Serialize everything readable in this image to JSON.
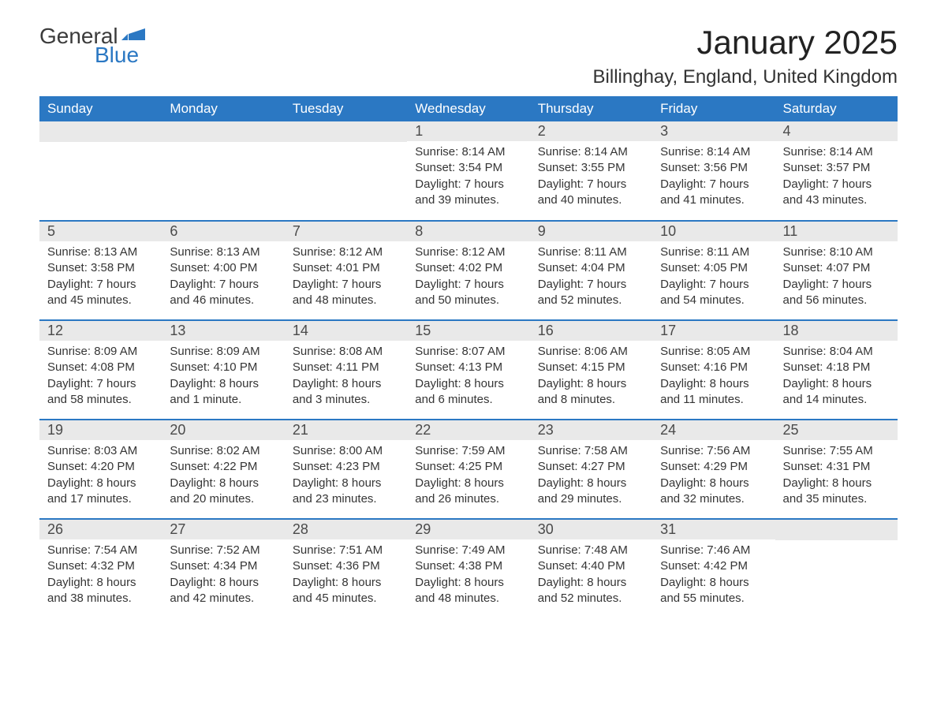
{
  "brand": {
    "word1": "General",
    "word2": "Blue",
    "flag_color": "#2b78c3"
  },
  "title": "January 2025",
  "location": "Billinghay, England, United Kingdom",
  "colors": {
    "header_bg": "#2b78c3",
    "header_fg": "#ffffff",
    "daynum_bg": "#e9e9e9",
    "text": "#323232",
    "row_divider": "#2b78c3"
  },
  "day_headers": [
    "Sunday",
    "Monday",
    "Tuesday",
    "Wednesday",
    "Thursday",
    "Friday",
    "Saturday"
  ],
  "weeks": [
    [
      null,
      null,
      null,
      {
        "n": "1",
        "sunrise": "8:14 AM",
        "sunset": "3:54 PM",
        "daylight": "7 hours and 39 minutes."
      },
      {
        "n": "2",
        "sunrise": "8:14 AM",
        "sunset": "3:55 PM",
        "daylight": "7 hours and 40 minutes."
      },
      {
        "n": "3",
        "sunrise": "8:14 AM",
        "sunset": "3:56 PM",
        "daylight": "7 hours and 41 minutes."
      },
      {
        "n": "4",
        "sunrise": "8:14 AM",
        "sunset": "3:57 PM",
        "daylight": "7 hours and 43 minutes."
      }
    ],
    [
      {
        "n": "5",
        "sunrise": "8:13 AM",
        "sunset": "3:58 PM",
        "daylight": "7 hours and 45 minutes."
      },
      {
        "n": "6",
        "sunrise": "8:13 AM",
        "sunset": "4:00 PM",
        "daylight": "7 hours and 46 minutes."
      },
      {
        "n": "7",
        "sunrise": "8:12 AM",
        "sunset": "4:01 PM",
        "daylight": "7 hours and 48 minutes."
      },
      {
        "n": "8",
        "sunrise": "8:12 AM",
        "sunset": "4:02 PM",
        "daylight": "7 hours and 50 minutes."
      },
      {
        "n": "9",
        "sunrise": "8:11 AM",
        "sunset": "4:04 PM",
        "daylight": "7 hours and 52 minutes."
      },
      {
        "n": "10",
        "sunrise": "8:11 AM",
        "sunset": "4:05 PM",
        "daylight": "7 hours and 54 minutes."
      },
      {
        "n": "11",
        "sunrise": "8:10 AM",
        "sunset": "4:07 PM",
        "daylight": "7 hours and 56 minutes."
      }
    ],
    [
      {
        "n": "12",
        "sunrise": "8:09 AM",
        "sunset": "4:08 PM",
        "daylight": "7 hours and 58 minutes."
      },
      {
        "n": "13",
        "sunrise": "8:09 AM",
        "sunset": "4:10 PM",
        "daylight": "8 hours and 1 minute."
      },
      {
        "n": "14",
        "sunrise": "8:08 AM",
        "sunset": "4:11 PM",
        "daylight": "8 hours and 3 minutes."
      },
      {
        "n": "15",
        "sunrise": "8:07 AM",
        "sunset": "4:13 PM",
        "daylight": "8 hours and 6 minutes."
      },
      {
        "n": "16",
        "sunrise": "8:06 AM",
        "sunset": "4:15 PM",
        "daylight": "8 hours and 8 minutes."
      },
      {
        "n": "17",
        "sunrise": "8:05 AM",
        "sunset": "4:16 PM",
        "daylight": "8 hours and 11 minutes."
      },
      {
        "n": "18",
        "sunrise": "8:04 AM",
        "sunset": "4:18 PM",
        "daylight": "8 hours and 14 minutes."
      }
    ],
    [
      {
        "n": "19",
        "sunrise": "8:03 AM",
        "sunset": "4:20 PM",
        "daylight": "8 hours and 17 minutes."
      },
      {
        "n": "20",
        "sunrise": "8:02 AM",
        "sunset": "4:22 PM",
        "daylight": "8 hours and 20 minutes."
      },
      {
        "n": "21",
        "sunrise": "8:00 AM",
        "sunset": "4:23 PM",
        "daylight": "8 hours and 23 minutes."
      },
      {
        "n": "22",
        "sunrise": "7:59 AM",
        "sunset": "4:25 PM",
        "daylight": "8 hours and 26 minutes."
      },
      {
        "n": "23",
        "sunrise": "7:58 AM",
        "sunset": "4:27 PM",
        "daylight": "8 hours and 29 minutes."
      },
      {
        "n": "24",
        "sunrise": "7:56 AM",
        "sunset": "4:29 PM",
        "daylight": "8 hours and 32 minutes."
      },
      {
        "n": "25",
        "sunrise": "7:55 AM",
        "sunset": "4:31 PM",
        "daylight": "8 hours and 35 minutes."
      }
    ],
    [
      {
        "n": "26",
        "sunrise": "7:54 AM",
        "sunset": "4:32 PM",
        "daylight": "8 hours and 38 minutes."
      },
      {
        "n": "27",
        "sunrise": "7:52 AM",
        "sunset": "4:34 PM",
        "daylight": "8 hours and 42 minutes."
      },
      {
        "n": "28",
        "sunrise": "7:51 AM",
        "sunset": "4:36 PM",
        "daylight": "8 hours and 45 minutes."
      },
      {
        "n": "29",
        "sunrise": "7:49 AM",
        "sunset": "4:38 PM",
        "daylight": "8 hours and 48 minutes."
      },
      {
        "n": "30",
        "sunrise": "7:48 AM",
        "sunset": "4:40 PM",
        "daylight": "8 hours and 52 minutes."
      },
      {
        "n": "31",
        "sunrise": "7:46 AM",
        "sunset": "4:42 PM",
        "daylight": "8 hours and 55 minutes."
      },
      null
    ]
  ],
  "labels": {
    "sunrise": "Sunrise: ",
    "sunset": "Sunset: ",
    "daylight": "Daylight: "
  }
}
